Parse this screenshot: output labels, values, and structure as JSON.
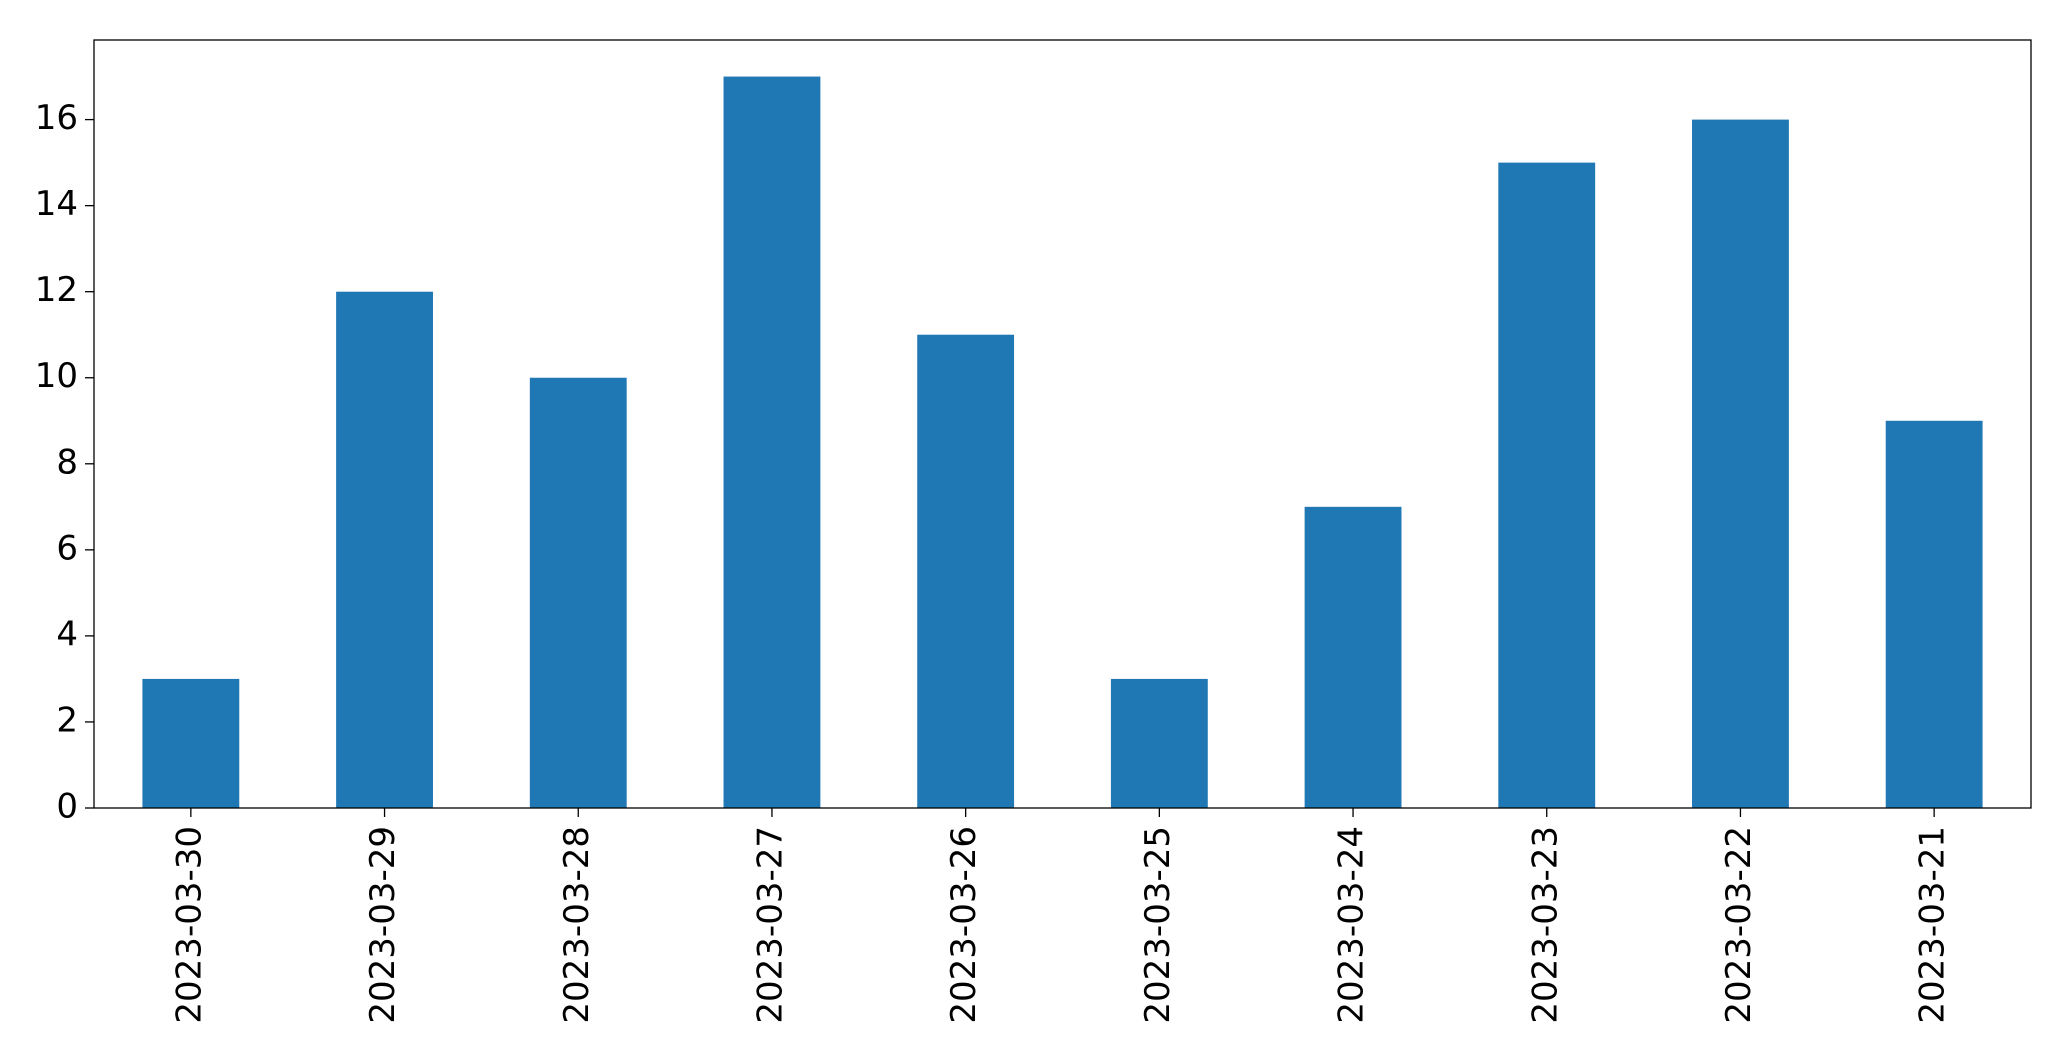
{
  "chart_data": {
    "type": "bar",
    "categories": [
      "2023-03-30",
      "2023-03-29",
      "2023-03-28",
      "2023-03-27",
      "2023-03-26",
      "2023-03-25",
      "2023-03-24",
      "2023-03-23",
      "2023-03-22",
      "2023-03-21"
    ],
    "values": [
      3,
      12,
      10,
      17,
      11,
      3,
      7,
      15,
      16,
      9
    ],
    "color": "#1f77b4",
    "ylim": [
      0,
      17.85
    ],
    "yticks": [
      0,
      2,
      4,
      6,
      8,
      10,
      12,
      14,
      16
    ],
    "grid": false
  }
}
